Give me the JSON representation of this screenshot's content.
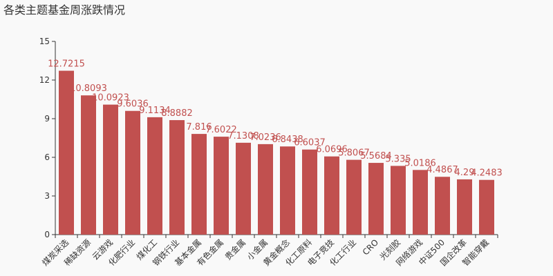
{
  "chart_data": {
    "type": "bar",
    "title": "各类主题基金周涨跌情况",
    "categories": [
      "煤炭采选",
      "稀缺资源",
      "云游戏",
      "化肥行业",
      "煤化工",
      "钢铁行业",
      "基本金属",
      "有色金属",
      "贵金属",
      "小金属",
      "黄金概念",
      "化工原料",
      "电子竞技",
      "化工行业",
      "CRO",
      "光刻胶",
      "网络游戏",
      "中证500",
      "国企改革",
      "智能穿戴"
    ],
    "values": [
      12.7215,
      10.8093,
      10.0923,
      9.6036,
      9.1134,
      8.8882,
      7.816,
      7.6022,
      7.1308,
      7.0236,
      6.8438,
      6.6037,
      6.0696,
      5.8067,
      5.5684,
      5.335,
      5.0186,
      4.4867,
      4.29,
      4.2483
    ],
    "color": "#c1504f",
    "ylim": [
      0,
      15
    ],
    "yticks": [
      0,
      3,
      6,
      9,
      12,
      15
    ],
    "grid": false
  }
}
